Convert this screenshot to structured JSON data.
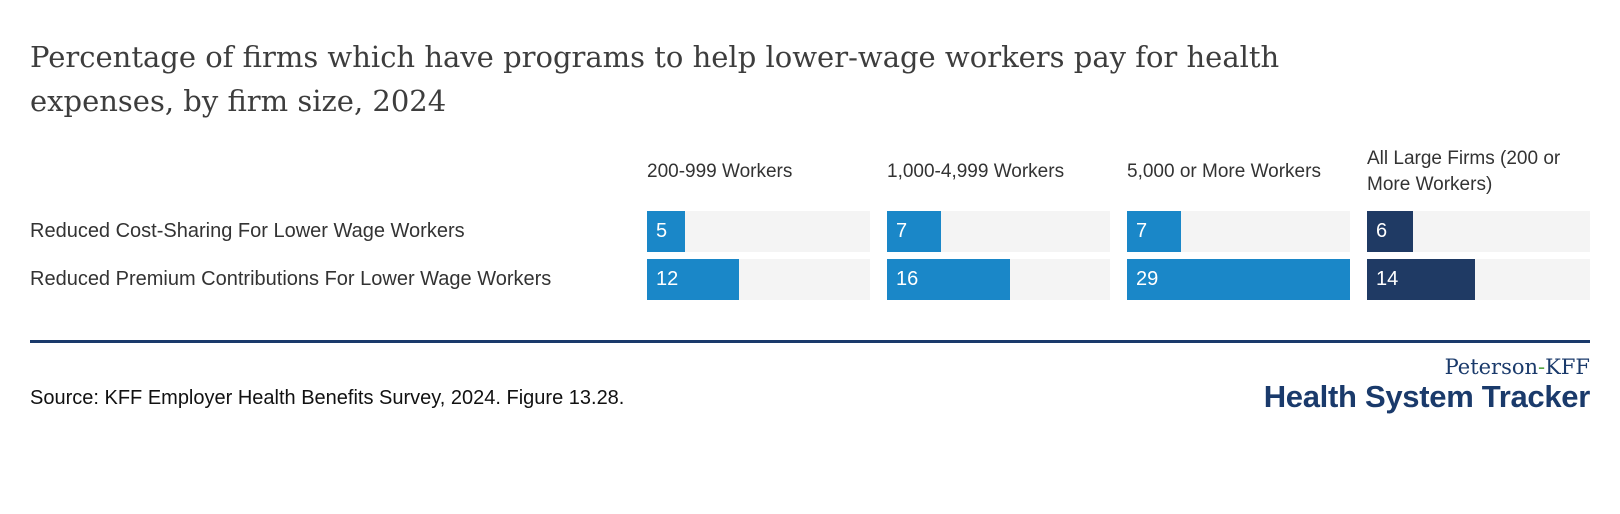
{
  "title": "Percentage of firms which have programs to help lower-wage workers pay for health expenses, by firm size, 2024",
  "chart_data": {
    "type": "bar",
    "orientation": "horizontal",
    "categories": [
      "200-999 Workers",
      "1,000-4,999 Workers",
      "5,000 or More Workers",
      "All Large Firms (200 or More Workers)"
    ],
    "series": [
      {
        "name": "Reduced Cost-Sharing For Lower Wage Workers",
        "values": [
          5,
          7,
          7,
          6
        ]
      },
      {
        "name": "Reduced Premium Contributions For Lower Wage Workers",
        "values": [
          12,
          16,
          29,
          14
        ]
      }
    ],
    "value_labels_shown": true,
    "xlim": [
      0,
      29
    ],
    "grid": false,
    "legend_position": "none",
    "units": "percent"
  },
  "colors": {
    "bar_blue": "#1a87c8",
    "bar_navy": "#1f3a64",
    "track_gray": "#f4f4f4",
    "divider_navy": "#1a3a6b",
    "title_text": "#3d3d3d",
    "label_text": "#333333",
    "value_text": "#ffffff",
    "logo_navy": "#1a3a6b",
    "logo_hyphen_green": "#58a646"
  },
  "footer": {
    "source": "Source: KFF Employer Health Benefits Survey, 2024. Figure 13.28.",
    "logo": {
      "top_left_word": "Peterson",
      "hyphen": "-",
      "top_right_word": "KFF",
      "bottom": "Health System Tracker"
    }
  }
}
